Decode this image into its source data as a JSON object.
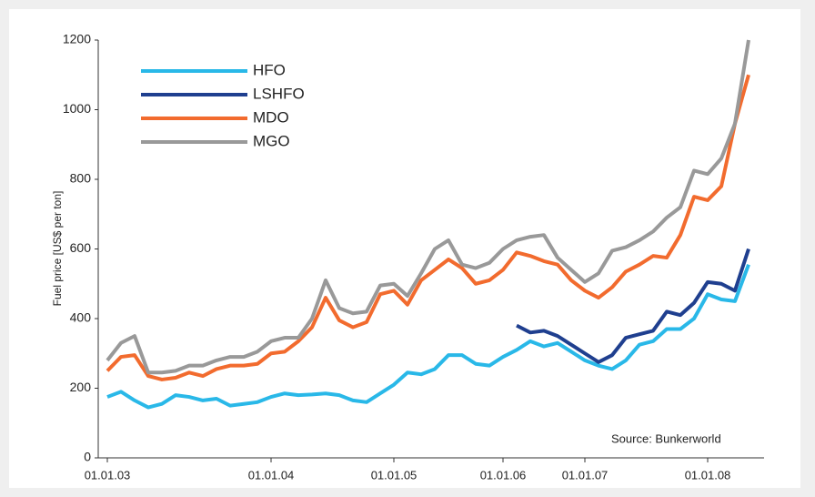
{
  "chart_data": {
    "type": "line",
    "ylabel": "Fuel price [US$ per ton]",
    "annotation": "Source: Bunkerworld",
    "categories": [
      "01.01.03",
      null,
      null,
      null,
      null,
      null,
      null,
      null,
      null,
      null,
      null,
      null,
      "01.01.04",
      null,
      null,
      null,
      null,
      null,
      null,
      null,
      null,
      "01.01.05",
      null,
      null,
      null,
      null,
      null,
      null,
      null,
      "01.01.06",
      null,
      null,
      null,
      null,
      null,
      "01.01.07",
      null,
      null,
      null,
      null,
      null,
      null,
      null,
      null,
      "01.01.08",
      null,
      null,
      null
    ],
    "series": [
      {
        "name": "HFO",
        "color": "#29b8e8",
        "values": [
          175,
          190,
          165,
          145,
          155,
          180,
          175,
          165,
          170,
          150,
          155,
          160,
          175,
          185,
          180,
          182,
          185,
          180,
          165,
          160,
          185,
          210,
          245,
          240,
          255,
          295,
          295,
          270,
          265,
          290,
          310,
          335,
          320,
          330,
          305,
          280,
          265,
          255,
          280,
          325,
          335,
          370,
          370,
          400,
          470,
          455,
          450,
          555
        ]
      },
      {
        "name": "LSHFO",
        "color": "#1f3f8f",
        "values": [
          null,
          null,
          null,
          null,
          null,
          null,
          null,
          null,
          null,
          null,
          null,
          null,
          null,
          null,
          null,
          null,
          null,
          null,
          null,
          null,
          null,
          null,
          null,
          null,
          null,
          null,
          null,
          null,
          null,
          null,
          380,
          360,
          365,
          350,
          325,
          300,
          275,
          295,
          345,
          355,
          365,
          420,
          410,
          445,
          505,
          500,
          480,
          600
        ]
      },
      {
        "name": "MDO",
        "color": "#f26b2e",
        "values": [
          250,
          290,
          295,
          235,
          225,
          230,
          245,
          235,
          255,
          265,
          265,
          270,
          300,
          305,
          335,
          375,
          460,
          395,
          375,
          390,
          470,
          480,
          440,
          510,
          540,
          570,
          545,
          500,
          510,
          540,
          590,
          580,
          565,
          555,
          510,
          480,
          460,
          490,
          535,
          555,
          580,
          575,
          640,
          750,
          740,
          780,
          960,
          1100
        ]
      },
      {
        "name": "MGO",
        "color": "#999999",
        "values": [
          280,
          330,
          350,
          245,
          245,
          250,
          265,
          265,
          280,
          290,
          290,
          305,
          335,
          345,
          345,
          400,
          510,
          430,
          415,
          420,
          495,
          500,
          465,
          530,
          600,
          625,
          555,
          545,
          560,
          600,
          625,
          635,
          640,
          575,
          540,
          505,
          530,
          595,
          605,
          625,
          650,
          690,
          720,
          825,
          815,
          860,
          960,
          1200
        ]
      }
    ],
    "ylim": [
      0,
      1200
    ],
    "yticks": [
      0,
      200,
      400,
      600,
      800,
      1000,
      1200
    ],
    "grid": false
  }
}
